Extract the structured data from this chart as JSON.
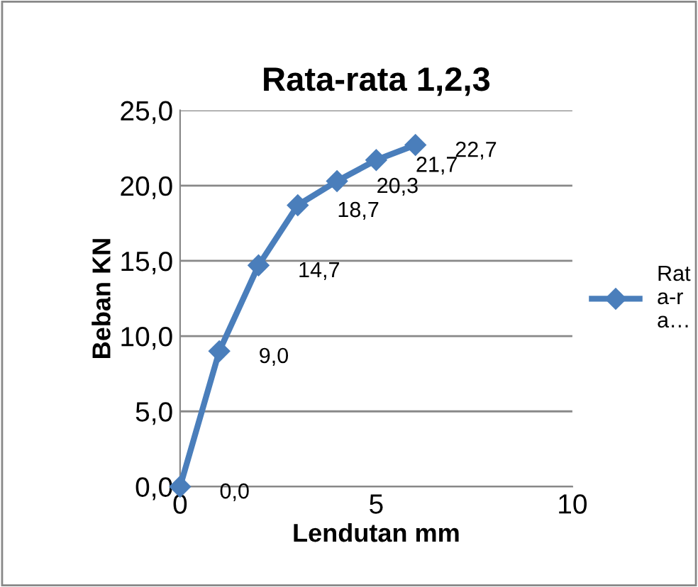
{
  "chart_data": {
    "type": "line",
    "title": "Rata-rata 1,2,3",
    "xlabel": "Lendutan mm",
    "ylabel": "Beban KN",
    "x": [
      0,
      1,
      2,
      3,
      4,
      5,
      6
    ],
    "series": [
      {
        "name": "Rata-ra…",
        "color": "#4a7ebb",
        "values": [
          0,
          9.0,
          14.7,
          18.7,
          20.3,
          21.7,
          22.7
        ],
        "value_labels": [
          "0,0",
          "9,0",
          "14,7",
          "18,7",
          "20,3",
          "21,7",
          "22,7"
        ]
      }
    ],
    "xlim": [
      0,
      10
    ],
    "xticks": [
      0,
      5,
      10
    ],
    "ylim": [
      0,
      25
    ],
    "yticks": [
      {
        "value": 0,
        "label": "0,0"
      },
      {
        "value": 5,
        "label": "5,0"
      },
      {
        "value": 10,
        "label": "10,0"
      },
      {
        "value": 15,
        "label": "15,0"
      },
      {
        "value": 20,
        "label": "20,0"
      },
      {
        "value": 25,
        "label": "25,0"
      }
    ],
    "grid": "y",
    "legend": "right",
    "marker": "diamond",
    "line_style": "solid"
  }
}
